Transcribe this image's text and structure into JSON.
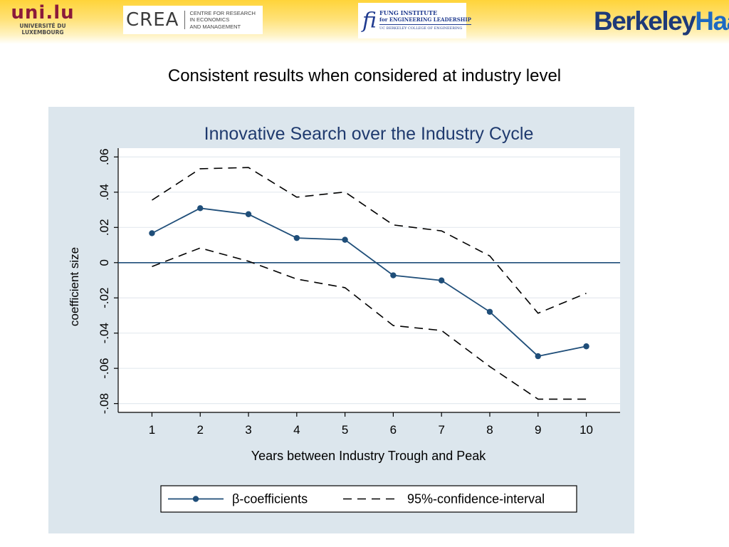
{
  "logos": {
    "uni": {
      "word": "uni.lu",
      "line1": "UNIVERSITÉ DU",
      "line2": "LUXEMBOURG"
    },
    "crea": {
      "word": "CREA",
      "line1": "CENTRE FOR RESEARCH",
      "line2": "IN ECONOMICS",
      "line3": "AND MANAGEMENT"
    },
    "fung": {
      "mark": "fi",
      "line1": "FUNG INSTITUTE",
      "line2": "for ENGINEERING LEADERSHIP",
      "line3": "UC BERKELEY COLLEGE OF ENGINEERING"
    },
    "haas": {
      "part1": "Berkeley",
      "part2": "Haas"
    }
  },
  "slide": {
    "title": "Consistent results when considered at industry level"
  },
  "colors": {
    "series": "#1f4e79",
    "ci": "#000000",
    "title": "#1f3a6e",
    "panel": "#dce6ed",
    "plot": "#ffffff",
    "grid": "#e4eaef",
    "zero_line": "#1f4e79"
  },
  "chart_data": {
    "type": "line",
    "title": "Innovative Search over the Industry Cycle",
    "xlabel": "Years between Industry Trough and Peak",
    "ylabel": "coefficient size",
    "x": [
      1,
      2,
      3,
      4,
      5,
      6,
      7,
      8,
      9,
      10
    ],
    "x_ticks": [
      "1",
      "2",
      "3",
      "4",
      "5",
      "6",
      "7",
      "8",
      "9",
      "10"
    ],
    "y_ticks": [
      {
        "value": -0.08,
        "label": "-.08"
      },
      {
        "value": -0.06,
        "label": "-.06"
      },
      {
        "value": -0.04,
        "label": "-.04"
      },
      {
        "value": -0.02,
        "label": "-.02"
      },
      {
        "value": 0,
        "label": "0"
      },
      {
        "value": 0.02,
        "label": ".02"
      },
      {
        "value": 0.04,
        "label": ".04"
      },
      {
        "value": 0.06,
        "label": ".06"
      }
    ],
    "xlim": [
      0.3,
      10.7
    ],
    "ylim": [
      -0.085,
      0.065
    ],
    "grid": true,
    "reference_line_y": 0,
    "legend_position": "bottom",
    "series": [
      {
        "name": "β-coefficients",
        "style": "solid-markers",
        "values": [
          0.0167,
          0.0309,
          0.0275,
          0.014,
          0.013,
          -0.0072,
          -0.0101,
          -0.0279,
          -0.0531,
          -0.0475
        ]
      },
      {
        "name": "95%-confidence-interval",
        "style": "dashed",
        "values": [
          0.0355,
          0.0533,
          0.054,
          0.0372,
          0.0401,
          0.0214,
          0.018,
          0.0038,
          -0.0287,
          -0.0174
        ]
      },
      {
        "name": "95%-confidence-interval lower",
        "style": "dashed",
        "legend": false,
        "values": [
          -0.0022,
          0.0083,
          0.0008,
          -0.0093,
          -0.0142,
          -0.0357,
          -0.0385,
          -0.059,
          -0.0775,
          -0.0775
        ]
      }
    ]
  }
}
